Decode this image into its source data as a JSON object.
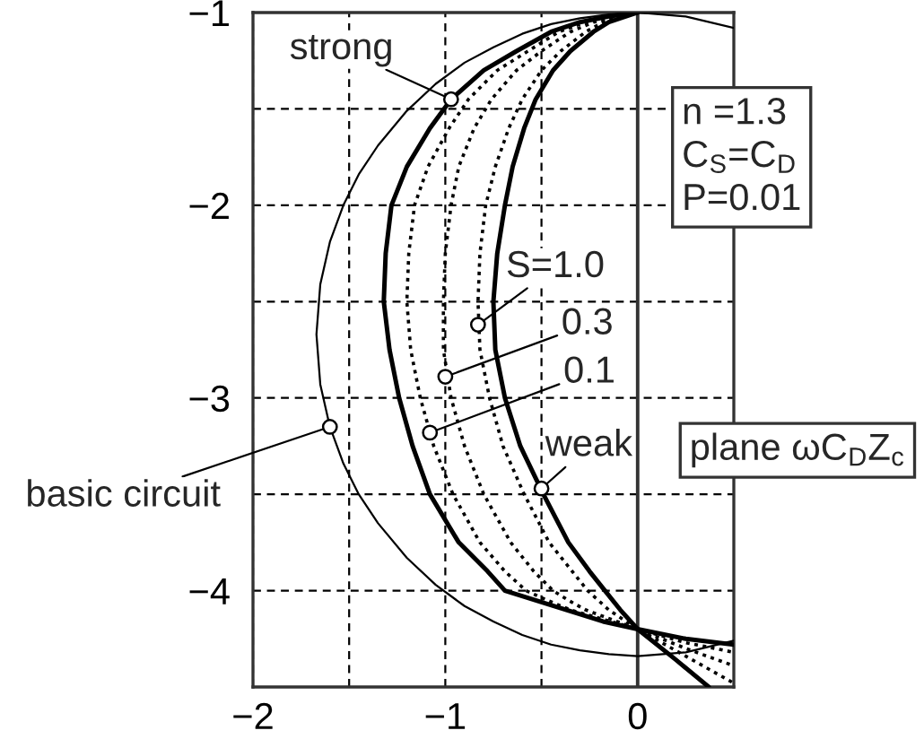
{
  "chart_data": {
    "type": "line",
    "xlim": [
      -2,
      0.5
    ],
    "ylim": [
      -4.5,
      -1
    ],
    "xticks": [
      {
        "value": -2,
        "label": "−2"
      },
      {
        "value": -1.5,
        "label": null
      },
      {
        "value": -1,
        "label": "−1"
      },
      {
        "value": -0.5,
        "label": null
      },
      {
        "value": 0,
        "label": "0"
      }
    ],
    "yticks": [
      {
        "value": -1,
        "label": "−1"
      },
      {
        "value": -1.5,
        "label": null
      },
      {
        "value": -2,
        "label": "−2"
      },
      {
        "value": -2.5,
        "label": null
      },
      {
        "value": -3,
        "label": "−3"
      },
      {
        "value": -3.5,
        "label": null
      },
      {
        "value": -4,
        "label": "−4"
      }
    ],
    "grid": true,
    "ref_lines": [
      {
        "axis": "x",
        "value": 0,
        "color": "#333333",
        "line_style": "solid"
      }
    ],
    "series": [
      {
        "color": "#000000",
        "line_style": "solid",
        "x": [
          0.5,
          0.25,
          0,
          -0.15,
          -0.3,
          -0.45,
          -0.6,
          -0.75,
          -0.9,
          -1.05,
          -1.2,
          -1.35,
          -1.45,
          -1.53,
          -1.6,
          -1.65,
          -1.67,
          -1.65,
          -1.6,
          -1.53,
          -1.45,
          -1.35,
          -1.2,
          -1.05,
          -0.9,
          -0.75,
          -0.6,
          -0.45,
          -0.3,
          -0.15,
          0,
          0.25,
          0.5
        ],
        "values": [
          -1.08,
          -1.02,
          -1.0,
          -1.01,
          -1.03,
          -1.06,
          -1.11,
          -1.18,
          -1.26,
          -1.37,
          -1.51,
          -1.69,
          -1.84,
          -2.0,
          -2.19,
          -2.41,
          -2.67,
          -2.93,
          -3.15,
          -3.34,
          -3.5,
          -3.65,
          -3.83,
          -3.97,
          -4.08,
          -4.16,
          -4.23,
          -4.28,
          -4.31,
          -4.33,
          -4.34,
          -4.32,
          -4.26
        ]
      },
      {
        "color": "#000000",
        "line_style": "solid",
        "x": [
          0,
          -0.15,
          -0.3,
          -0.45,
          -0.63,
          -0.8,
          -0.97,
          -1.08,
          -1.2,
          -1.28,
          -1.31,
          -1.32,
          -1.29,
          -1.24,
          -1.17,
          -1.08,
          -0.93,
          -0.78,
          -0.69,
          -0.53,
          -0.37,
          -0.18,
          0,
          0.25,
          0.5
        ],
        "values": [
          -1.0,
          -1.02,
          -1.05,
          -1.1,
          -1.2,
          -1.3,
          -1.45,
          -1.6,
          -1.8,
          -2.0,
          -2.25,
          -2.5,
          -2.75,
          -3.0,
          -3.25,
          -3.5,
          -3.75,
          -3.9,
          -4.0,
          -4.05,
          -4.1,
          -4.16,
          -4.2,
          -4.25,
          -4.28
        ]
      },
      {
        "color": "#000000",
        "line_style": "dotted",
        "x": [
          0,
          -0.27,
          -0.41,
          -0.57,
          -0.73,
          -0.88,
          -0.98,
          -1.09,
          -1.16,
          -1.19,
          -1.2,
          -1.18,
          -1.13,
          -1.06,
          -0.96,
          -0.82,
          -0.69,
          -0.58,
          -0.47,
          -0.35,
          0,
          0.25,
          0.5
        ],
        "values": [
          -1.0,
          -1.05,
          -1.1,
          -1.2,
          -1.3,
          -1.45,
          -1.6,
          -1.8,
          -2.0,
          -2.25,
          -2.5,
          -2.75,
          -3.0,
          -3.25,
          -3.5,
          -3.75,
          -3.9,
          -4.0,
          -4.05,
          -4.1,
          -4.2,
          -4.27,
          -4.32
        ]
      },
      {
        "color": "#000000",
        "line_style": "dotted",
        "x": [
          0,
          -0.23,
          -0.35,
          -0.5,
          -0.63,
          -0.76,
          -0.85,
          -0.93,
          -0.97,
          -1.0,
          -1.01,
          -1.01,
          -0.97,
          -0.9,
          -0.8,
          -0.66,
          -0.54,
          -0.44,
          -0.36,
          -0.27,
          0,
          0.25,
          0.5
        ],
        "values": [
          -1.0,
          -1.05,
          -1.1,
          -1.2,
          -1.3,
          -1.45,
          -1.6,
          -1.8,
          -2.0,
          -2.25,
          -2.5,
          -2.75,
          -3.0,
          -3.25,
          -3.5,
          -3.75,
          -3.9,
          -4.0,
          -4.05,
          -4.1,
          -4.2,
          -4.3,
          -4.39
        ]
      },
      {
        "color": "#000000",
        "line_style": "dotted",
        "x": [
          0,
          -0.18,
          -0.27,
          -0.4,
          -0.5,
          -0.6,
          -0.67,
          -0.74,
          -0.79,
          -0.82,
          -0.83,
          -0.82,
          -0.77,
          -0.7,
          -0.59,
          -0.46,
          -0.34,
          -0.26,
          -0.15,
          0,
          0.25,
          0.5
        ],
        "values": [
          -1.0,
          -1.05,
          -1.1,
          -1.2,
          -1.3,
          -1.45,
          -1.6,
          -1.8,
          -2.0,
          -2.25,
          -2.5,
          -2.75,
          -3.0,
          -3.25,
          -3.5,
          -3.75,
          -3.9,
          -4.0,
          -4.1,
          -4.2,
          -4.34,
          -4.48
        ]
      },
      {
        "color": "#000000",
        "line_style": "solid",
        "x": [
          0,
          -0.15,
          -0.23,
          -0.35,
          -0.44,
          -0.53,
          -0.59,
          -0.65,
          -0.69,
          -0.73,
          -0.75,
          -0.74,
          -0.69,
          -0.61,
          -0.49,
          -0.36,
          -0.25,
          -0.17,
          -0.09,
          0,
          0.2,
          0.37
        ],
        "values": [
          -1.0,
          -1.05,
          -1.1,
          -1.2,
          -1.3,
          -1.45,
          -1.6,
          -1.8,
          -2.0,
          -2.25,
          -2.5,
          -2.75,
          -3.0,
          -3.25,
          -3.5,
          -3.75,
          -3.9,
          -4.0,
          -4.1,
          -4.2,
          -4.36,
          -4.5
        ]
      }
    ],
    "annotations": [
      {
        "text": "strong",
        "x": -0.97,
        "y": -1.45
      },
      {
        "text": "S=1.0",
        "x": -0.83,
        "y": -2.62
      },
      {
        "text": "0.3",
        "x": -1.0,
        "y": -2.89
      },
      {
        "text": "0.1",
        "x": -1.08,
        "y": -3.18
      },
      {
        "text": "weak",
        "x": -0.5,
        "y": -3.47
      },
      {
        "text": "basic circuit",
        "x": -1.6,
        "y": -3.15
      },
      "n =1.3\nC$_{S}$=C$_{D}$\nP=0.01",
      "plane ωC$_{D}$Z$_{c}$"
    ]
  }
}
